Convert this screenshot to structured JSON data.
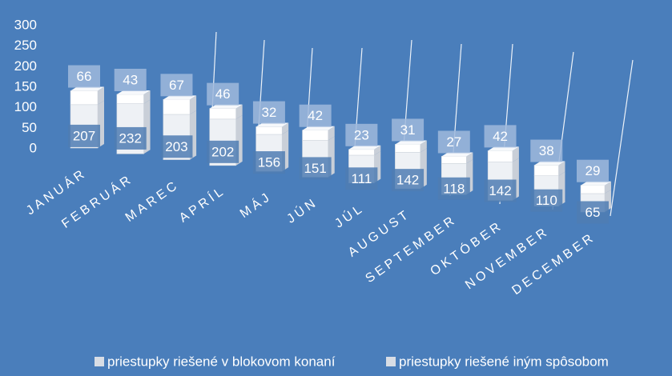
{
  "chart_data": {
    "type": "bar3d_stacked",
    "categories": [
      "JANUÁR",
      "FEBRUÁR",
      "MAREC",
      "APRÍL",
      "MÁJ",
      "JÚN",
      "JÚL",
      "AUGUST",
      "SEPTEMBER",
      "OKTÓBER",
      "NOVEMBER",
      "DECEMBER"
    ],
    "series": [
      {
        "name": "priestupky riešené v blokovom konaní",
        "color": "#eef1f5",
        "values": [
          207,
          232,
          203,
          202,
          156,
          151,
          111,
          142,
          118,
          142,
          110,
          65
        ]
      },
      {
        "name": "priestupky riešené iným spôsobom",
        "color": "#ffffff",
        "values": [
          66,
          43,
          67,
          46,
          32,
          42,
          23,
          31,
          27,
          42,
          38,
          29
        ]
      }
    ],
    "ylim": [
      0,
      300
    ],
    "yticks": [
      0,
      50,
      100,
      150,
      200,
      250,
      300
    ],
    "legend": "bottom"
  }
}
